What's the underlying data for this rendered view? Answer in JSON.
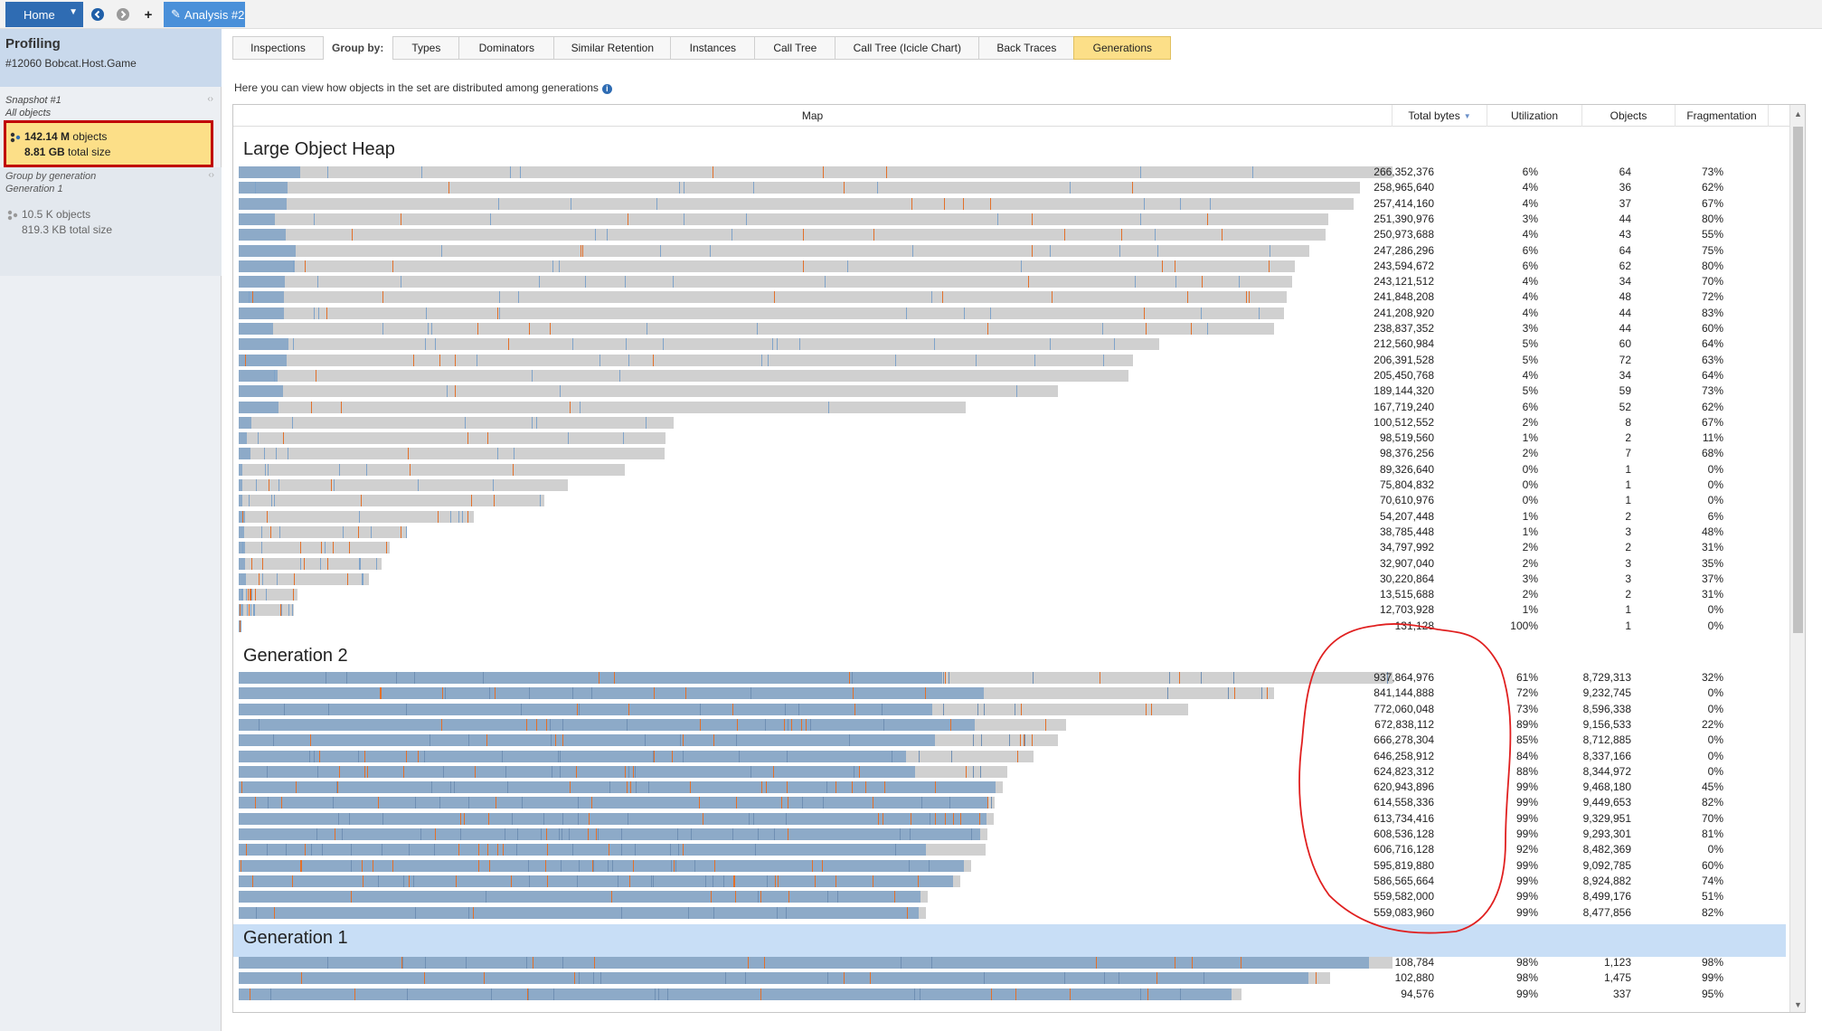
{
  "topbar": {
    "home_label": "Home",
    "analysis_tab_label": "Analysis #2",
    "icons": [
      "back-icon",
      "forward-icon",
      "add-icon",
      "pencil-icon"
    ]
  },
  "sidebar": {
    "title": "Profiling",
    "process": "#12060 Bobcat.Host.Game",
    "snapshot_label": "Snapshot #1",
    "snapshot_filter": "All objects",
    "selected": {
      "count": "142.14 M",
      "count_unit": "objects",
      "size": "8.81 GB",
      "size_unit": "total size"
    },
    "group_label": "Group by generation",
    "group_value": "Generation 1",
    "gen_card": {
      "count": "10.5 K",
      "count_unit": "objects",
      "size": "819.3 KB",
      "size_unit": "total size"
    }
  },
  "tabs": {
    "inspections": "Inspections",
    "group_by": "Group by:",
    "items": [
      "Types",
      "Dominators",
      "Similar Retention",
      "Instances",
      "Call Tree",
      "Call Tree (Icicle Chart)",
      "Back Traces",
      "Generations"
    ],
    "active": "Generations"
  },
  "hint": "Here you can view how objects in the set are distributed among generations",
  "columns": {
    "map": "Map",
    "total_bytes": "Total bytes",
    "utilization": "Utilization",
    "objects": "Objects",
    "fragmentation": "Fragmentation"
  },
  "colors": {
    "used": "#8daac8",
    "free": "#d0d0d0",
    "pinned": "#e2702a",
    "selected_row": "#c8def6",
    "annotation": "#e02020"
  },
  "sections": [
    {
      "title": "Large Object Heap",
      "rows": [
        {
          "bytes": "266,352,376",
          "util": "6%",
          "objects": "64",
          "frag": "73%",
          "fill": 1.0,
          "used": 0.06
        },
        {
          "bytes": "258,965,640",
          "util": "4%",
          "objects": "36",
          "frag": "62%",
          "fill": 0.972,
          "used": 0.04
        },
        {
          "bytes": "257,414,160",
          "util": "4%",
          "objects": "37",
          "frag": "67%",
          "fill": 0.966,
          "used": 0.04
        },
        {
          "bytes": "251,390,976",
          "util": "3%",
          "objects": "44",
          "frag": "80%",
          "fill": 0.944,
          "used": 0.03
        },
        {
          "bytes": "250,973,688",
          "util": "4%",
          "objects": "43",
          "frag": "55%",
          "fill": 0.942,
          "used": 0.04
        },
        {
          "bytes": "247,286,296",
          "util": "6%",
          "objects": "64",
          "frag": "75%",
          "fill": 0.928,
          "used": 0.06
        },
        {
          "bytes": "243,594,672",
          "util": "6%",
          "objects": "62",
          "frag": "80%",
          "fill": 0.915,
          "used": 0.06
        },
        {
          "bytes": "243,121,512",
          "util": "4%",
          "objects": "34",
          "frag": "70%",
          "fill": 0.913,
          "used": 0.04
        },
        {
          "bytes": "241,848,208",
          "util": "4%",
          "objects": "48",
          "frag": "72%",
          "fill": 0.908,
          "used": 0.04
        },
        {
          "bytes": "241,208,920",
          "util": "4%",
          "objects": "44",
          "frag": "83%",
          "fill": 0.906,
          "used": 0.04
        },
        {
          "bytes": "238,837,352",
          "util": "3%",
          "objects": "44",
          "frag": "60%",
          "fill": 0.897,
          "used": 0.03
        },
        {
          "bytes": "212,560,984",
          "util": "5%",
          "objects": "60",
          "frag": "64%",
          "fill": 0.798,
          "used": 0.05
        },
        {
          "bytes": "206,391,528",
          "util": "5%",
          "objects": "72",
          "frag": "63%",
          "fill": 0.775,
          "used": 0.05
        },
        {
          "bytes": "205,450,768",
          "util": "4%",
          "objects": "34",
          "frag": "64%",
          "fill": 0.771,
          "used": 0.04
        },
        {
          "bytes": "189,144,320",
          "util": "5%",
          "objects": "59",
          "frag": "73%",
          "fill": 0.71,
          "used": 0.05
        },
        {
          "bytes": "167,719,240",
          "util": "6%",
          "objects": "52",
          "frag": "62%",
          "fill": 0.63,
          "used": 0.06
        },
        {
          "bytes": "100,512,552",
          "util": "2%",
          "objects": "8",
          "frag": "67%",
          "fill": 0.377,
          "used": 0.02
        },
        {
          "bytes": "98,519,560",
          "util": "1%",
          "objects": "2",
          "frag": "11%",
          "fill": 0.37,
          "used": 0.01
        },
        {
          "bytes": "98,376,256",
          "util": "2%",
          "objects": "7",
          "frag": "68%",
          "fill": 0.369,
          "used": 0.02
        },
        {
          "bytes": "89,326,640",
          "util": "0%",
          "objects": "1",
          "frag": "0%",
          "fill": 0.335,
          "used": 0.0
        },
        {
          "bytes": "75,804,832",
          "util": "0%",
          "objects": "1",
          "frag": "0%",
          "fill": 0.285,
          "used": 0.0
        },
        {
          "bytes": "70,610,976",
          "util": "0%",
          "objects": "1",
          "frag": "0%",
          "fill": 0.265,
          "used": 0.0
        },
        {
          "bytes": "54,207,448",
          "util": "1%",
          "objects": "2",
          "frag": "6%",
          "fill": 0.204,
          "used": 0.01
        },
        {
          "bytes": "38,785,448",
          "util": "1%",
          "objects": "3",
          "frag": "48%",
          "fill": 0.146,
          "used": 0.01
        },
        {
          "bytes": "34,797,992",
          "util": "2%",
          "objects": "2",
          "frag": "31%",
          "fill": 0.131,
          "used": 0.02
        },
        {
          "bytes": "32,907,040",
          "util": "2%",
          "objects": "3",
          "frag": "35%",
          "fill": 0.124,
          "used": 0.02
        },
        {
          "bytes": "30,220,864",
          "util": "3%",
          "objects": "3",
          "frag": "37%",
          "fill": 0.113,
          "used": 0.03
        },
        {
          "bytes": "13,515,688",
          "util": "2%",
          "objects": "2",
          "frag": "31%",
          "fill": 0.051,
          "used": 0.02
        },
        {
          "bytes": "12,703,928",
          "util": "1%",
          "objects": "1",
          "frag": "0%",
          "fill": 0.048,
          "used": 0.01
        },
        {
          "bytes": "131,128",
          "util": "100%",
          "objects": "1",
          "frag": "0%",
          "fill": 0.0005,
          "used": 1.0
        }
      ]
    },
    {
      "title": "Generation 2",
      "rows": [
        {
          "bytes": "937,864,976",
          "util": "61%",
          "objects": "8,729,313",
          "frag": "32%",
          "fill": 1.0,
          "used": 0.61
        },
        {
          "bytes": "841,144,888",
          "util": "72%",
          "objects": "9,232,745",
          "frag": "0%",
          "fill": 0.897,
          "used": 0.72
        },
        {
          "bytes": "772,060,048",
          "util": "73%",
          "objects": "8,596,338",
          "frag": "0%",
          "fill": 0.823,
          "used": 0.73
        },
        {
          "bytes": "672,838,112",
          "util": "89%",
          "objects": "9,156,533",
          "frag": "22%",
          "fill": 0.717,
          "used": 0.89
        },
        {
          "bytes": "666,278,304",
          "util": "85%",
          "objects": "8,712,885",
          "frag": "0%",
          "fill": 0.71,
          "used": 0.85
        },
        {
          "bytes": "646,258,912",
          "util": "84%",
          "objects": "8,337,166",
          "frag": "0%",
          "fill": 0.689,
          "used": 0.84
        },
        {
          "bytes": "624,823,312",
          "util": "88%",
          "objects": "8,344,972",
          "frag": "0%",
          "fill": 0.666,
          "used": 0.88
        },
        {
          "bytes": "620,943,896",
          "util": "99%",
          "objects": "9,468,180",
          "frag": "45%",
          "fill": 0.662,
          "used": 0.99
        },
        {
          "bytes": "614,558,336",
          "util": "99%",
          "objects": "9,449,653",
          "frag": "82%",
          "fill": 0.655,
          "used": 0.99
        },
        {
          "bytes": "613,734,416",
          "util": "99%",
          "objects": "9,329,951",
          "frag": "70%",
          "fill": 0.654,
          "used": 0.99
        },
        {
          "bytes": "608,536,128",
          "util": "99%",
          "objects": "9,293,301",
          "frag": "81%",
          "fill": 0.649,
          "used": 0.99
        },
        {
          "bytes": "606,716,128",
          "util": "92%",
          "objects": "8,482,369",
          "frag": "0%",
          "fill": 0.647,
          "used": 0.92
        },
        {
          "bytes": "595,819,880",
          "util": "99%",
          "objects": "9,092,785",
          "frag": "60%",
          "fill": 0.635,
          "used": 0.99
        },
        {
          "bytes": "586,565,664",
          "util": "99%",
          "objects": "8,924,882",
          "frag": "74%",
          "fill": 0.625,
          "used": 0.99
        },
        {
          "bytes": "559,582,000",
          "util": "99%",
          "objects": "8,499,176",
          "frag": "51%",
          "fill": 0.597,
          "used": 0.99
        },
        {
          "bytes": "559,083,960",
          "util": "99%",
          "objects": "8,477,856",
          "frag": "82%",
          "fill": 0.596,
          "used": 0.99
        }
      ]
    },
    {
      "title": "Generation 1",
      "rows": [
        {
          "bytes": "108,784",
          "util": "98%",
          "objects": "1,123",
          "frag": "98%",
          "fill": 1.0,
          "used": 0.98
        },
        {
          "bytes": "102,880",
          "util": "98%",
          "objects": "1,475",
          "frag": "99%",
          "fill": 0.946,
          "used": 0.98
        },
        {
          "bytes": "94,576",
          "util": "99%",
          "objects": "337",
          "frag": "95%",
          "fill": 0.869,
          "used": 0.99
        }
      ]
    }
  ]
}
